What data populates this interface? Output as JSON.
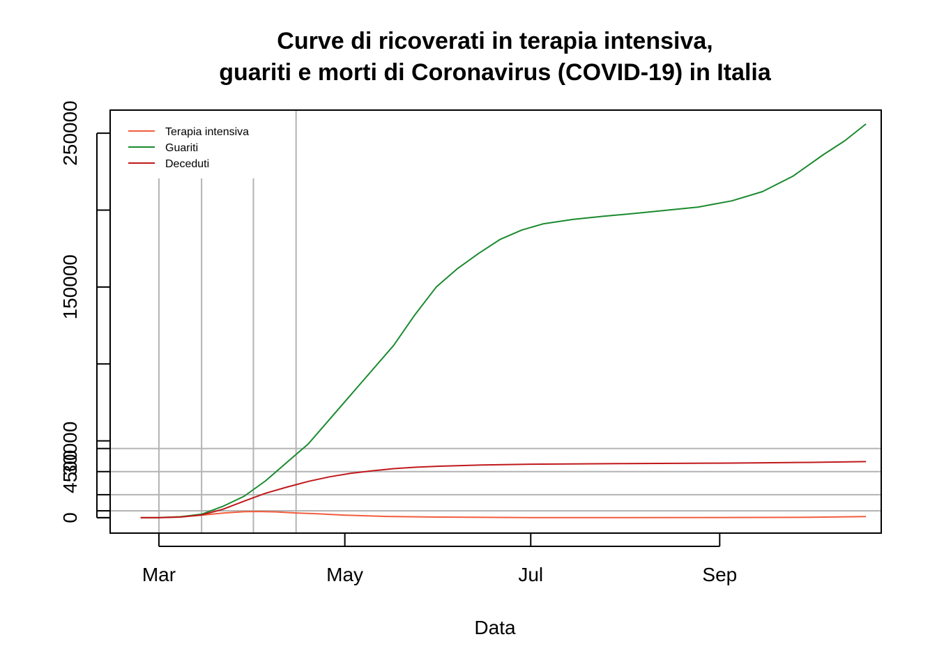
{
  "chart_data": {
    "type": "line",
    "title_lines": [
      "Curve di ricoverati in terapia intensiva,",
      "guariti e morti di Coronavirus (COVID-19) in Italia"
    ],
    "xlabel": "Data",
    "ylabel": "",
    "x_tick_labels": [
      {
        "label": "Mar",
        "date": "2020-03-01"
      },
      {
        "label": "May",
        "date": "2020-05-01"
      },
      {
        "label": "Jul",
        "date": "2020-07-01"
      },
      {
        "label": "Sep",
        "date": "2020-09-01"
      }
    ],
    "y_ticks": [
      0,
      50000,
      100000,
      150000,
      200000,
      250000
    ],
    "y_tick_labels": [
      "0",
      "",
      "",
      "150000",
      "",
      "250000"
    ],
    "overlay_y_ticks": [
      0,
      4500,
      15000,
      30000,
      45000
    ],
    "overlay_y_tick_labels": [
      "",
      "",
      "",
      "4500",
      "30000"
    ],
    "xlim": [
      "2020-02-14",
      "2020-10-24"
    ],
    "ylim": [
      -10000,
      265000
    ],
    "grid": {
      "vertical_dates": [
        "2020-03-01",
        "2020-03-15",
        "2020-04-01",
        "2020-04-15"
      ],
      "horizontal_values": [
        4500,
        15000,
        30000,
        45000
      ]
    },
    "legend_position": "top-left",
    "series": [
      {
        "name": "Terapia intensiva",
        "color": "#f25c3c",
        "points": [
          [
            "2020-02-24",
            0
          ],
          [
            "2020-03-01",
            150
          ],
          [
            "2020-03-08",
            650
          ],
          [
            "2020-03-15",
            1700
          ],
          [
            "2020-03-22",
            3000
          ],
          [
            "2020-03-29",
            3950
          ],
          [
            "2020-04-03",
            4050
          ],
          [
            "2020-04-08",
            3800
          ],
          [
            "2020-04-15",
            3100
          ],
          [
            "2020-04-22",
            2550
          ],
          [
            "2020-05-01",
            1700
          ],
          [
            "2020-05-15",
            850
          ],
          [
            "2020-06-01",
            400
          ],
          [
            "2020-07-01",
            90
          ],
          [
            "2020-08-01",
            45
          ],
          [
            "2020-09-01",
            150
          ],
          [
            "2020-10-01",
            300
          ],
          [
            "2020-10-19",
            800
          ]
        ]
      },
      {
        "name": "Guariti",
        "color": "#1a8a2e",
        "points": [
          [
            "2020-02-24",
            0
          ],
          [
            "2020-03-01",
            100
          ],
          [
            "2020-03-08",
            600
          ],
          [
            "2020-03-15",
            2300
          ],
          [
            "2020-03-22",
            7400
          ],
          [
            "2020-03-29",
            14000
          ],
          [
            "2020-04-05",
            24000
          ],
          [
            "2020-04-12",
            36000
          ],
          [
            "2020-04-19",
            48000
          ],
          [
            "2020-04-26",
            64000
          ],
          [
            "2020-05-03",
            80000
          ],
          [
            "2020-05-10",
            96000
          ],
          [
            "2020-05-17",
            112000
          ],
          [
            "2020-05-24",
            132000
          ],
          [
            "2020-05-31",
            150000
          ],
          [
            "2020-06-07",
            162000
          ],
          [
            "2020-06-14",
            172000
          ],
          [
            "2020-06-21",
            181000
          ],
          [
            "2020-06-28",
            187000
          ],
          [
            "2020-07-05",
            191000
          ],
          [
            "2020-07-15",
            194000
          ],
          [
            "2020-07-25",
            196000
          ],
          [
            "2020-08-05",
            198000
          ],
          [
            "2020-08-15",
            200000
          ],
          [
            "2020-08-25",
            202000
          ],
          [
            "2020-09-05",
            206000
          ],
          [
            "2020-09-15",
            212000
          ],
          [
            "2020-09-25",
            222000
          ],
          [
            "2020-10-05",
            236000
          ],
          [
            "2020-10-12",
            245000
          ],
          [
            "2020-10-19",
            256000
          ]
        ]
      },
      {
        "name": "Deceduti",
        "color": "#c0181b",
        "points": [
          [
            "2020-02-24",
            0
          ],
          [
            "2020-03-01",
            30
          ],
          [
            "2020-03-08",
            400
          ],
          [
            "2020-03-15",
            1800
          ],
          [
            "2020-03-22",
            5500
          ],
          [
            "2020-03-29",
            10800
          ],
          [
            "2020-04-05",
            15900
          ],
          [
            "2020-04-12",
            19900
          ],
          [
            "2020-04-19",
            23600
          ],
          [
            "2020-04-26",
            26600
          ],
          [
            "2020-05-03",
            28900
          ],
          [
            "2020-05-10",
            30500
          ],
          [
            "2020-05-17",
            31900
          ],
          [
            "2020-05-24",
            32800
          ],
          [
            "2020-06-01",
            33500
          ],
          [
            "2020-06-15",
            34300
          ],
          [
            "2020-07-01",
            34800
          ],
          [
            "2020-08-01",
            35200
          ],
          [
            "2020-09-01",
            35500
          ],
          [
            "2020-09-15",
            35700
          ],
          [
            "2020-10-01",
            36000
          ],
          [
            "2020-10-19",
            36500
          ]
        ]
      }
    ]
  }
}
